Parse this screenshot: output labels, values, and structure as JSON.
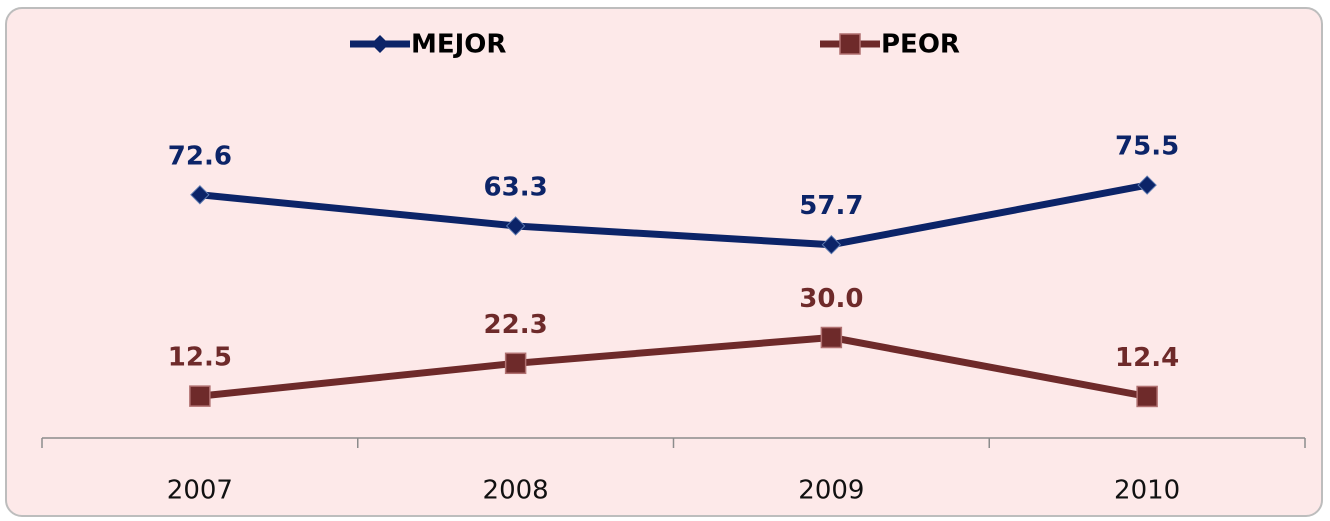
{
  "chart_data": {
    "type": "line",
    "categories": [
      "2007",
      "2008",
      "2009",
      "2010"
    ],
    "series": [
      {
        "name": "MEJOR",
        "color": "#0c2468",
        "marker": "diamond",
        "values": [
          72.6,
          63.3,
          57.7,
          75.5
        ],
        "value_labels": [
          "72.6",
          "63.3",
          "57.7",
          "75.5"
        ]
      },
      {
        "name": "PEOR",
        "color": "#6e2a2a",
        "marker": "square",
        "values": [
          12.5,
          22.3,
          30,
          12.4
        ],
        "value_labels": [
          "12.5",
          "22.3",
          "30.0",
          "12.4"
        ]
      }
    ],
    "ylim": [
      0,
      80
    ],
    "legend": "top",
    "grid": false
  }
}
